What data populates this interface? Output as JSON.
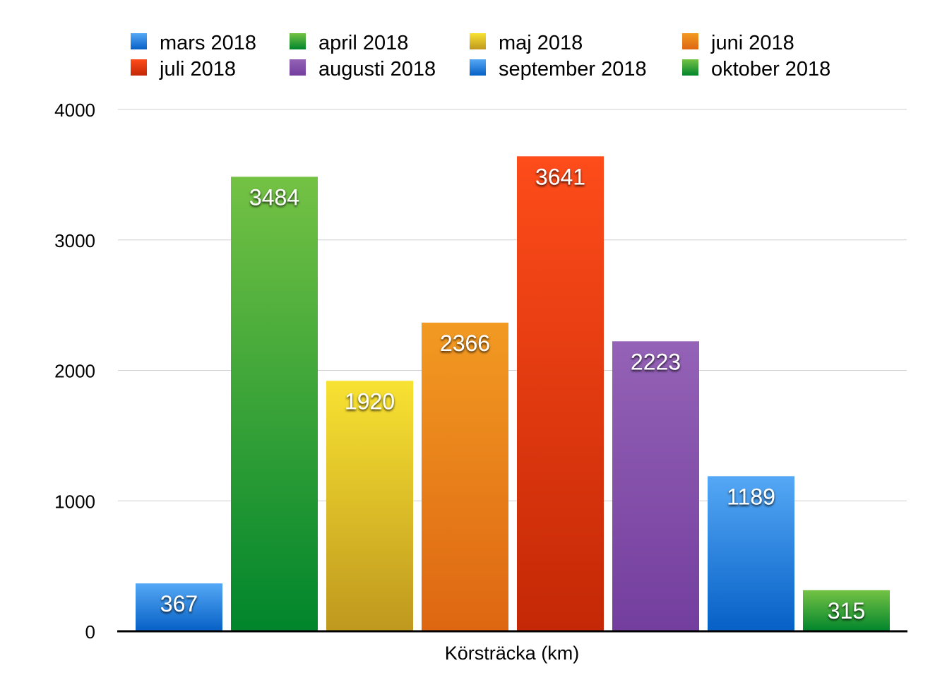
{
  "chart_data": {
    "type": "bar",
    "title": "",
    "xlabel": "Körsträcka (km)",
    "ylabel": "",
    "ylim": [
      0,
      4000
    ],
    "yticks": [
      0,
      1000,
      2000,
      3000,
      4000
    ],
    "grid": true,
    "legend_position": "top",
    "categories": [
      "Körsträcka (km)"
    ],
    "series": [
      {
        "name": "mars 2018",
        "value": 367,
        "color_top": "#55a8f5",
        "color_bottom": "#0660c6"
      },
      {
        "name": "april 2018",
        "value": 3484,
        "color_top": "#74c244",
        "color_bottom": "#00852c"
      },
      {
        "name": "maj 2018",
        "value": 1920,
        "color_top": "#f8e232",
        "color_bottom": "#bf981e"
      },
      {
        "name": "juni 2018",
        "value": 2366,
        "color_top": "#f29a22",
        "color_bottom": "#de6612"
      },
      {
        "name": "juli 2018",
        "value": 3641,
        "color_top": "#fe4c1a",
        "color_bottom": "#c42806"
      },
      {
        "name": "augusti 2018",
        "value": 2223,
        "color_top": "#9462b6",
        "color_bottom": "#733e9e"
      },
      {
        "name": "september 2018",
        "value": 1189,
        "color_top": "#55a8f5",
        "color_bottom": "#0660c6"
      },
      {
        "name": "oktober 2018",
        "value": 315,
        "color_top": "#74c244",
        "color_bottom": "#00852c"
      }
    ]
  }
}
